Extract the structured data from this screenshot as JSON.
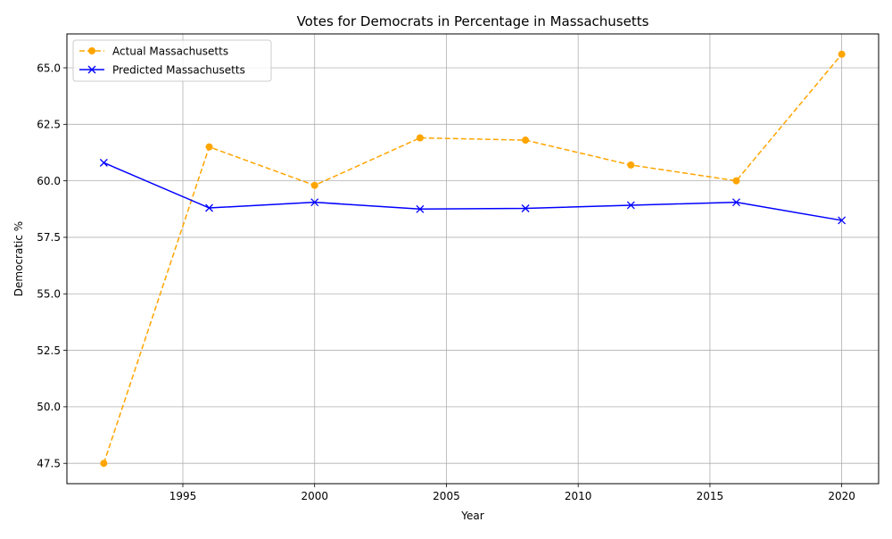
{
  "chart_data": {
    "type": "line",
    "title": "Votes for Democrats in Percentage in Massachusetts",
    "xlabel": "Year",
    "ylabel": "Democratic %",
    "xlim": [
      1990.6,
      2021.4
    ],
    "ylim": [
      46.6,
      66.5
    ],
    "xticks": [
      1995,
      2000,
      2005,
      2010,
      2015,
      2020
    ],
    "yticks": [
      47.5,
      50.0,
      52.5,
      55.0,
      57.5,
      60.0,
      62.5,
      65.0
    ],
    "ytick_labels": [
      "47.5",
      "50.0",
      "52.5",
      "55.0",
      "57.5",
      "60.0",
      "62.5",
      "65.0"
    ],
    "grid": true,
    "legend_position": "top-left",
    "x": [
      1992,
      1996,
      2000,
      2004,
      2008,
      2012,
      2016,
      2020
    ],
    "series": [
      {
        "name": "Actual Massachusetts",
        "values": [
          47.5,
          61.5,
          59.8,
          61.9,
          61.8,
          60.7,
          60.0,
          65.6
        ],
        "color": "#ffa500",
        "line_style": "dashed",
        "marker": "circle"
      },
      {
        "name": "Predicted Massachusetts",
        "values": [
          60.8,
          58.8,
          59.05,
          58.75,
          58.78,
          58.92,
          59.05,
          58.25
        ],
        "color": "#0000ff",
        "line_style": "solid",
        "marker": "x"
      }
    ]
  }
}
